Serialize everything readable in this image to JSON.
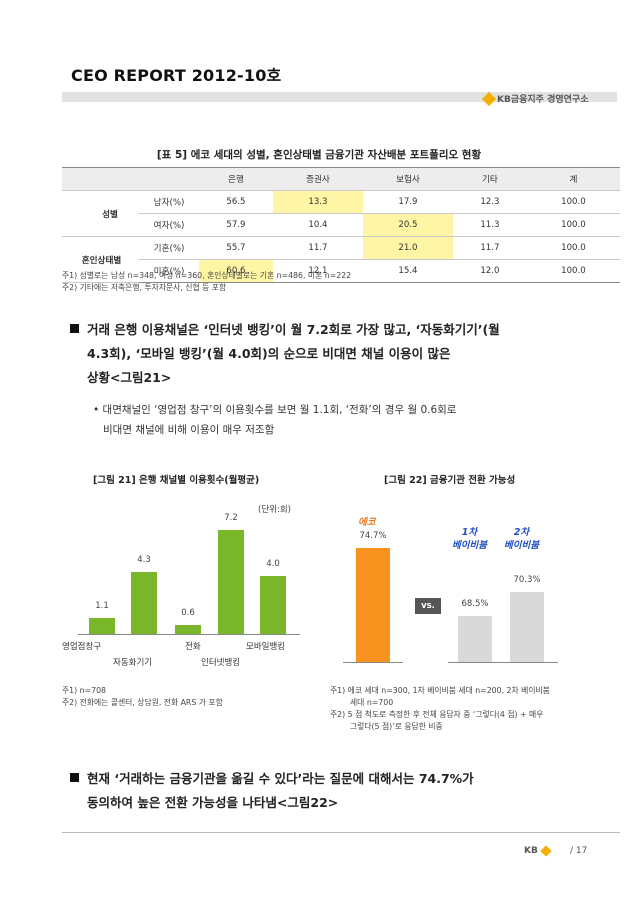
{
  "header": {
    "title": "CEO REPORT 2012-10호",
    "brand": "KB금융지주 경영연구소"
  },
  "table": {
    "title": "[표 5] 에코 세대의 성별, 혼인상태별 금융기관 자산배분 포트폴리오 현황",
    "columns": [
      "은행",
      "증권사",
      "보험사",
      "기타",
      "계"
    ],
    "groups": [
      {
        "label": "성별",
        "rows": [
          {
            "label": "남자(%)",
            "values": [
              "56.5",
              "13.3",
              "17.9",
              "12.3",
              "100.0"
            ],
            "highlight": [
              false,
              true,
              false,
              false,
              false
            ]
          },
          {
            "label": "여자(%)",
            "values": [
              "57.9",
              "10.4",
              "20.5",
              "11.3",
              "100.0"
            ],
            "highlight": [
              false,
              false,
              true,
              false,
              false
            ]
          }
        ]
      },
      {
        "label": "혼인상태별",
        "rows": [
          {
            "label": "기혼(%)",
            "values": [
              "55.7",
              "11.7",
              "21.0",
              "11.7",
              "100.0"
            ],
            "highlight": [
              false,
              false,
              true,
              false,
              false
            ]
          },
          {
            "label": "미혼(%)",
            "values": [
              "60.6",
              "12.1",
              "15.4",
              "12.0",
              "100.0"
            ],
            "highlight": [
              true,
              false,
              false,
              false,
              false
            ]
          }
        ]
      }
    ],
    "notes": [
      "주1) 성별로는 남성 n=348, 여성 n=360, 혼인상태별로는 기혼 n=486, 미혼 n=222",
      "주2) 기타에는 저축은행, 투자자문사, 신협 등 포함"
    ]
  },
  "paragraph1": {
    "lines": [
      "거래 은행 이용채널은 ‘인터넷 뱅킹’이 월 7.2회로 가장 많고, ‘자동화기기’(월",
      "4.3회), ‘모바일 뱅킹’(월 4.0회)의 순으로 비대면 채널 이용이 많은",
      "상황<그림21>"
    ],
    "sub_lines": [
      "• 대면채널인 ‘영업점 창구’의 이용횟수를 보면 월 1.1회, ‘전화’의 경우 월 0.6회로",
      "비대면 채널에 비해 이용이 매우 저조함"
    ]
  },
  "figure21": {
    "title": "[그림 21] 은행 채널별 이용횟수(월평균)",
    "unit": "(단위:회)",
    "notes": [
      "주1) n=708",
      "주2) 전화에는 콜센터, 상담원, 전화 ARS 가 포함"
    ]
  },
  "figure22": {
    "title": "[그림 22] 금융기관 전환 가능성",
    "vs": "vs.",
    "labels": [
      "에코",
      "1차\n베이비붐",
      "2차\n베이비붐"
    ],
    "notes": [
      "주1) 에코 세대 n=300, 1차 베이비붐 세대 n=200, 2차 베이비붐",
      "세대 n=700",
      "주2) 5 점 척도로 측정한 후 전체 응답자 중 ‘그렇다(4 점) + 매우",
      "그렇다(5 점)’로 응답한 비중"
    ]
  },
  "chart_data": [
    {
      "type": "bar",
      "title": "[그림 21] 은행 채널별 이용횟수(월평균)",
      "unit": "(단위:회)",
      "categories": [
        "영업점창구",
        "자동화기기",
        "전화",
        "인터넷뱅킹",
        "모바일뱅킹"
      ],
      "values": [
        1.1,
        4.3,
        0.6,
        7.2,
        4.0
      ],
      "color": "#7ab62a"
    },
    {
      "type": "bar",
      "title": "[그림 22] 금융기관 전환 가능성",
      "categories": [
        "에코",
        "1차 베이비붐",
        "2차 베이비붐"
      ],
      "values": [
        74.7,
        68.5,
        70.3
      ],
      "value_labels": [
        "74.7%",
        "68.5%",
        "70.3%"
      ],
      "colors": [
        "#f7931e",
        "#d9d9d9",
        "#d9d9d9"
      ]
    }
  ],
  "paragraph2": {
    "lines": [
      "현재 ‘거래하는 금융기관을 옮길 수 있다’라는 질문에 대해서는 74.7%가",
      "동의하여 높은 전환 가능성을 나타냄<그림22>"
    ]
  },
  "footer": {
    "brand": "KB",
    "page": "/ 17"
  }
}
